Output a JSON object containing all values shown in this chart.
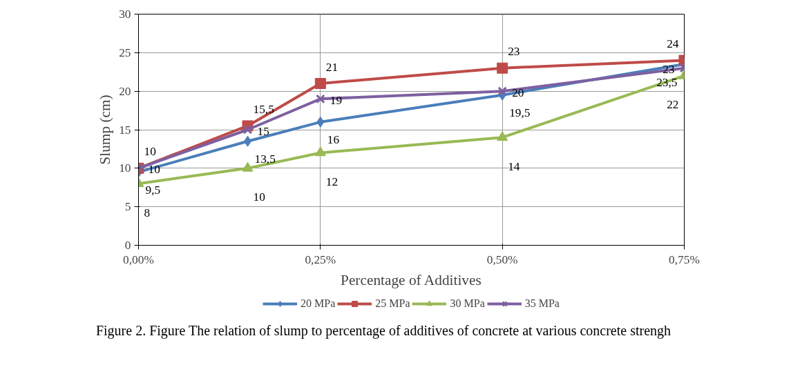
{
  "chart_data": {
    "type": "line",
    "xlabel": "Percentage of Additives",
    "ylabel": "Slump (cm)",
    "x": [
      0,
      0.15,
      0.25,
      0.5,
      0.75
    ],
    "xlim": [
      0,
      0.75
    ],
    "xticks": [
      {
        "value": 0,
        "label": "0,00%"
      },
      {
        "value": 0.25,
        "label": "0,25%"
      },
      {
        "value": 0.5,
        "label": "0,50%"
      },
      {
        "value": 0.75,
        "label": "0,75%"
      }
    ],
    "ylim": [
      0,
      30
    ],
    "yticks": [
      0,
      5,
      10,
      15,
      20,
      25,
      30
    ],
    "grid": true,
    "legend": "bottom",
    "line_style": "solid",
    "series": [
      {
        "name": "20 MPa",
        "color": "#4a7ebb",
        "marker": "diamond",
        "values": [
          9.5,
          13.5,
          16,
          19.5,
          23.5
        ],
        "value_labels": [
          "9,5",
          "13,5",
          "16",
          "19,5",
          "23,5"
        ]
      },
      {
        "name": "25 MPa",
        "color": "#be4b48",
        "marker": "square",
        "values": [
          10,
          15.5,
          21,
          23,
          24
        ],
        "value_labels": [
          "10",
          "15,5",
          "21",
          "23",
          "24"
        ]
      },
      {
        "name": "30 MPa",
        "color": "#98b954",
        "marker": "triangle",
        "values": [
          8,
          10,
          12,
          14,
          22
        ],
        "value_labels": [
          "8",
          "10",
          "12",
          "14",
          "22"
        ]
      },
      {
        "name": "35 MPa",
        "color": "#7d60a0",
        "marker": "cross",
        "values": [
          10,
          15,
          19,
          20,
          23
        ],
        "value_labels": [
          "10",
          "15",
          "19",
          "20",
          "23"
        ]
      }
    ],
    "annotations": [
      "Figure 2. Figure The relation of slump to percentage of additives of concrete at various concrete strengh"
    ]
  }
}
